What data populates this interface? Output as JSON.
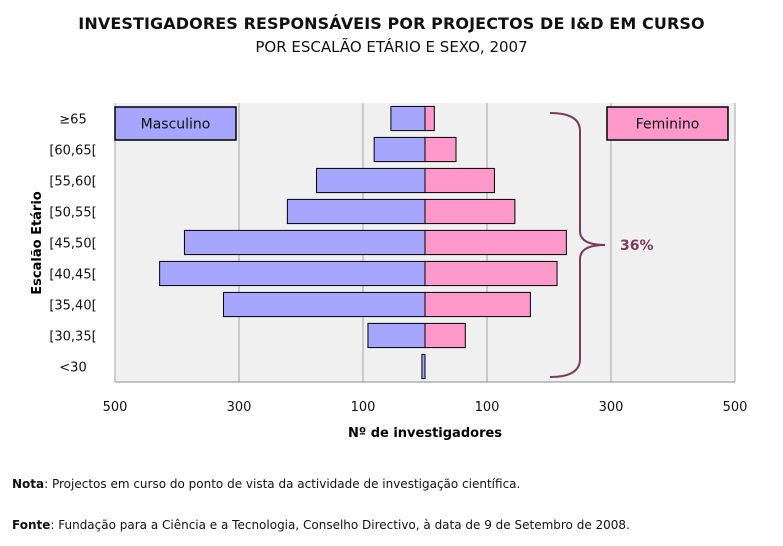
{
  "title": "INVESTIGADORES RESPONSÁVEIS POR PROJECTOS DE I&D EM CURSO",
  "subtitle": "POR ESCALÃO ETÁRIO E SEXO, 2007",
  "chart_data": {
    "type": "bar",
    "orientation": "horizontal-pyramid",
    "categories": [
      "≥65",
      "[60,65[",
      "[55,60[",
      "[50,55[",
      "[45,50[",
      "[40,45[",
      "[35,40[",
      "[30,35[",
      "<30"
    ],
    "series": [
      {
        "name": "Masculino",
        "color": "#a6a6ff",
        "values": [
          55,
          82,
          175,
          222,
          388,
          428,
          325,
          92,
          5
        ]
      },
      {
        "name": "Feminino",
        "color": "#ff99cc",
        "values": [
          15,
          50,
          112,
          145,
          228,
          213,
          170,
          65,
          0
        ]
      }
    ],
    "xlabel": "Nº de investigadores",
    "ylabel": "Escalão Etário",
    "xticks": [
      "500",
      "300",
      "100",
      "100",
      "300",
      "500"
    ],
    "xlim": [
      -500,
      500
    ],
    "grid": true,
    "annotation": {
      "text": "36%",
      "color": "#7a3c5a",
      "spans_categories": [
        "≥65",
        "<30"
      ]
    }
  },
  "notes": {
    "nota_label": "Nota",
    "nota_text": ": Projectos em curso do ponto de vista da actividade de investigação científica.",
    "fonte_label": "Fonte",
    "fonte_text": ": Fundação para a Ciência e a Tecnologia, Conselho Directivo, à data de 9 de Setembro de 2008."
  }
}
